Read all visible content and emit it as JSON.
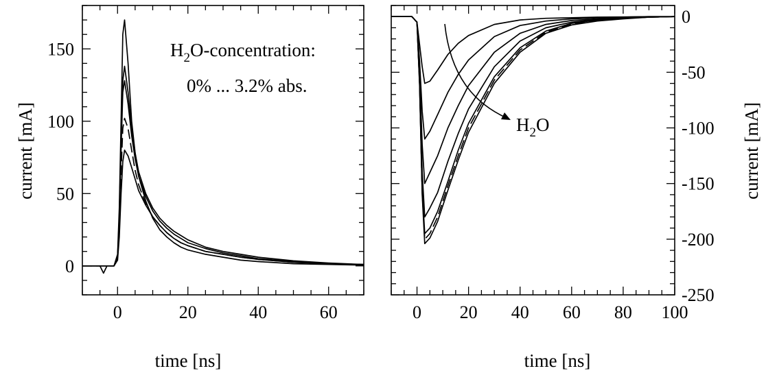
{
  "chart_data": [
    {
      "type": "line",
      "xlabel": "time [ns]",
      "ylabel": "current [mA]",
      "xlim": [
        -10,
        70
      ],
      "ylim": [
        -20,
        180
      ],
      "x_ticks": [
        0,
        20,
        40,
        60
      ],
      "y_ticks": [
        0,
        50,
        100,
        150
      ],
      "annotation": {
        "title_main": "H",
        "title_sub": "2",
        "title_rest": "O-concentration:",
        "line2": "0% ... 3.2% abs."
      },
      "series": [
        {
          "style": "solid",
          "x": [
            -10,
            -1,
            0,
            0.5,
            1,
            1.5,
            2,
            3,
            4,
            5,
            6,
            8,
            10,
            12,
            14,
            16,
            18,
            20,
            25,
            30,
            35,
            40,
            50,
            60,
            70
          ],
          "y": [
            0,
            0,
            8,
            40,
            100,
            160,
            170,
            140,
            100,
            78,
            62,
            45,
            33,
            25,
            20,
            16,
            13,
            11,
            8,
            6,
            4,
            3,
            1.5,
            1,
            0.5
          ]
        },
        {
          "style": "solid",
          "x": [
            -10,
            -1,
            0,
            0.5,
            1,
            1.5,
            2,
            3,
            4,
            5,
            6,
            8,
            10,
            12,
            14,
            16,
            18,
            20,
            25,
            30,
            35,
            40,
            50,
            60,
            70
          ],
          "y": [
            0,
            0,
            6,
            35,
            90,
            128,
            138,
            120,
            95,
            78,
            65,
            50,
            40,
            33,
            28,
            24,
            21,
            18,
            13,
            10,
            8,
            6,
            3.5,
            2,
            1
          ]
        },
        {
          "style": "solid",
          "x": [
            -10,
            -1,
            0,
            0.5,
            1,
            1.5,
            2,
            3,
            4,
            5,
            6,
            8,
            10,
            12,
            14,
            16,
            18,
            20,
            25,
            30,
            35,
            40,
            50,
            60,
            70
          ],
          "y": [
            0,
            0,
            6,
            30,
            80,
            120,
            128,
            112,
            90,
            74,
            62,
            48,
            38,
            31,
            26,
            22,
            19,
            16,
            12,
            9,
            7,
            5,
            3,
            1.5,
            1
          ]
        },
        {
          "style": "dashed",
          "x": [
            -10,
            -1,
            0,
            0.5,
            1,
            1.5,
            2,
            3,
            4,
            5,
            6,
            8,
            10,
            12,
            14,
            16,
            18,
            20,
            25,
            30,
            35,
            40,
            50,
            60,
            70
          ],
          "y": [
            0,
            0,
            5,
            25,
            65,
            95,
            102,
            95,
            80,
            66,
            56,
            43,
            34,
            28,
            23,
            19,
            16,
            14,
            10,
            8,
            6,
            4.5,
            2.5,
            1.5,
            1
          ]
        },
        {
          "style": "solid",
          "x": [
            -10,
            -5,
            -4,
            -3,
            -1,
            0,
            0.5,
            1,
            1.5,
            2,
            3,
            4,
            5,
            6,
            8,
            10,
            12,
            14,
            16,
            18,
            20,
            25,
            30,
            35,
            40,
            50,
            60,
            70
          ],
          "y": [
            0,
            0,
            -5,
            0,
            0,
            4,
            20,
            50,
            72,
            80,
            76,
            68,
            60,
            52,
            42,
            34,
            28,
            23,
            19,
            16,
            14,
            10,
            8,
            6,
            4.5,
            2.5,
            1.5,
            1
          ]
        }
      ]
    },
    {
      "type": "line",
      "xlabel": "time [ns]",
      "ylabel": "current [mA]",
      "xlim": [
        -10,
        100
      ],
      "ylim": [
        -250,
        10
      ],
      "x_ticks": [
        0,
        20,
        40,
        60,
        80,
        100
      ],
      "y_ticks": [
        0,
        -50,
        -100,
        -150,
        -200,
        -250
      ],
      "y_axis_side": "right",
      "annotation": {
        "label_main": "H",
        "label_sub": "2",
        "label_rest": "O"
      },
      "series": [
        {
          "style": "solid",
          "x": [
            -10,
            -2,
            0,
            1,
            2,
            3,
            5,
            8,
            12,
            16,
            20,
            30,
            40,
            50,
            60,
            70,
            80,
            90,
            100
          ],
          "y": [
            0,
            0,
            -5,
            -25,
            -45,
            -60,
            -58,
            -48,
            -34,
            -24,
            -17,
            -7,
            -3,
            -1.5,
            -1,
            -0.5,
            -0.3,
            0,
            0
          ]
        },
        {
          "style": "solid",
          "x": [
            -10,
            -2,
            0,
            1,
            2,
            3,
            5,
            8,
            12,
            16,
            20,
            30,
            40,
            50,
            60,
            70,
            80,
            90,
            100
          ],
          "y": [
            0,
            0,
            -5,
            -40,
            -85,
            -110,
            -103,
            -88,
            -68,
            -52,
            -39,
            -18,
            -8,
            -4,
            -2,
            -1,
            -0.5,
            0,
            0
          ]
        },
        {
          "style": "solid",
          "x": [
            -10,
            -2,
            0,
            1,
            2,
            3,
            5,
            8,
            12,
            16,
            20,
            30,
            40,
            50,
            60,
            70,
            80,
            90,
            100
          ],
          "y": [
            0,
            0,
            -5,
            -50,
            -115,
            -150,
            -140,
            -125,
            -100,
            -80,
            -62,
            -32,
            -15,
            -7,
            -3.5,
            -2,
            -1,
            -0.5,
            0
          ]
        },
        {
          "style": "solid",
          "x": [
            -10,
            -2,
            0,
            1,
            2,
            3,
            5,
            8,
            12,
            16,
            20,
            30,
            40,
            50,
            60,
            70,
            80,
            90,
            100
          ],
          "y": [
            0,
            0,
            -5,
            -55,
            -140,
            -180,
            -172,
            -158,
            -130,
            -105,
            -83,
            -45,
            -22,
            -10,
            -5,
            -2.5,
            -1,
            -0.5,
            0
          ]
        },
        {
          "style": "solid",
          "x": [
            -10,
            -2,
            0,
            1,
            2,
            3,
            5,
            8,
            12,
            16,
            20,
            30,
            40,
            50,
            60,
            70,
            80,
            90,
            100
          ],
          "y": [
            0,
            0,
            -5,
            -60,
            -155,
            -195,
            -190,
            -175,
            -148,
            -120,
            -96,
            -54,
            -28,
            -13,
            -6,
            -3,
            -1.5,
            -0.5,
            0
          ]
        },
        {
          "style": "dashed",
          "x": [
            -10,
            -2,
            0,
            1,
            2,
            3,
            5,
            8,
            12,
            16,
            20,
            30,
            40,
            50,
            60,
            70,
            80,
            90,
            100
          ],
          "y": [
            0,
            0,
            -5,
            -60,
            -158,
            -200,
            -195,
            -180,
            -152,
            -125,
            -100,
            -57,
            -30,
            -14,
            -7,
            -3.5,
            -1.5,
            -0.5,
            0
          ]
        },
        {
          "style": "solid",
          "x": [
            -10,
            -2,
            0,
            1,
            2,
            3,
            5,
            8,
            12,
            16,
            20,
            30,
            40,
            50,
            60,
            70,
            80,
            90,
            100
          ],
          "y": [
            0,
            0,
            -5,
            -62,
            -160,
            -204,
            -199,
            -184,
            -156,
            -129,
            -104,
            -60,
            -32,
            -15,
            -7.5,
            -4,
            -2,
            -0.5,
            0
          ]
        }
      ]
    }
  ]
}
